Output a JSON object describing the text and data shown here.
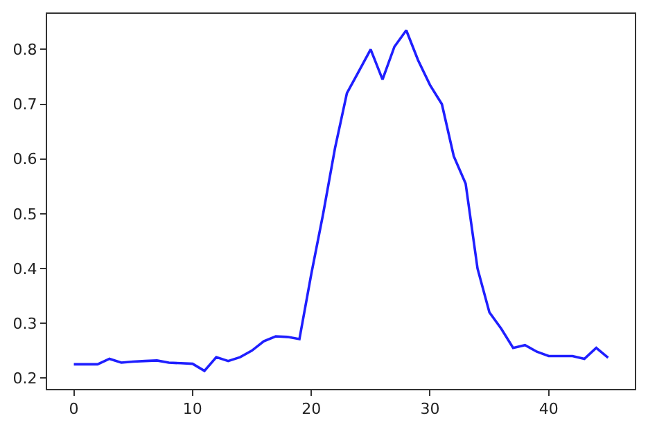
{
  "chart_data": {
    "type": "line",
    "x": [
      0,
      1,
      2,
      3,
      4,
      5,
      6,
      7,
      8,
      9,
      10,
      11,
      12,
      13,
      14,
      15,
      16,
      17,
      18,
      19,
      20,
      21,
      22,
      23,
      24,
      25,
      26,
      27,
      28,
      29,
      30,
      31,
      32,
      33,
      34,
      35,
      36,
      37,
      38,
      39,
      40,
      41,
      42,
      43,
      44,
      45
    ],
    "series": [
      {
        "color": "#1f1fff",
        "values": [
          0.225,
          0.225,
          0.225,
          0.235,
          0.228,
          0.23,
          0.231,
          0.232,
          0.228,
          0.227,
          0.226,
          0.213,
          0.238,
          0.231,
          0.238,
          0.25,
          0.267,
          0.276,
          0.275,
          0.271,
          0.39,
          0.5,
          0.62,
          0.72,
          0.76,
          0.8,
          0.745,
          0.805,
          0.835,
          0.78,
          0.735,
          0.7,
          0.605,
          0.555,
          0.4,
          0.32,
          0.29,
          0.255,
          0.26,
          0.248,
          0.24,
          0.24,
          0.24,
          0.235,
          0.255,
          0.237
        ]
      }
    ],
    "xlim": [
      -2.25,
      47.25
    ],
    "xticks": [
      0,
      10,
      20,
      30,
      40
    ],
    "ylim": [
      0.18,
      0.865
    ],
    "yticks": [
      0.2,
      0.3,
      0.4,
      0.5,
      0.6,
      0.7,
      0.8
    ],
    "legend": false,
    "marker": "none",
    "line_style": "solid"
  }
}
